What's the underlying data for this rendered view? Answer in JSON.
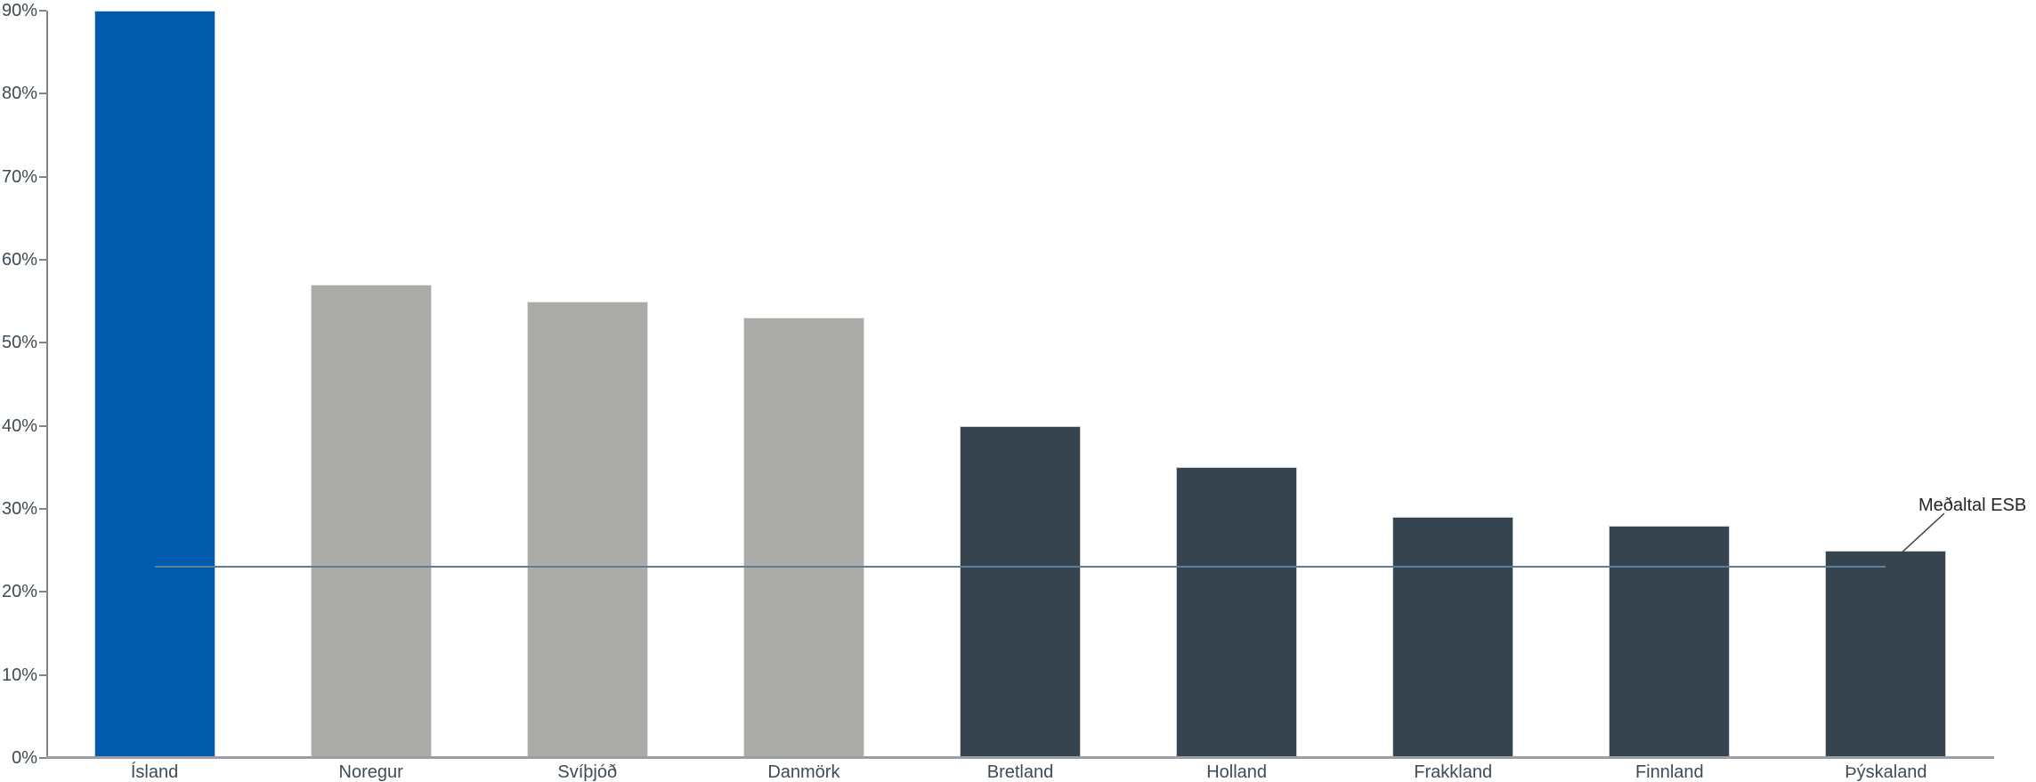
{
  "chart_data": {
    "type": "bar",
    "title": "",
    "xlabel": "",
    "ylabel": "",
    "categories": [
      "Ísland",
      "Noregur",
      "Svíþjóð",
      "Danmörk",
      "Bretland",
      "Holland",
      "Frakkland",
      "Finnland",
      "Þýskaland"
    ],
    "values": [
      90,
      57,
      55,
      53,
      40,
      35,
      29,
      28,
      25
    ],
    "bar_colors": [
      "#005bac",
      "#abaca8",
      "#abaca8",
      "#abaca8",
      "#35444e",
      "#35444e",
      "#35444e",
      "#35444e",
      "#35444e"
    ],
    "ylim": [
      0,
      90
    ],
    "ytick_step": 10,
    "ytick_labels": [
      "0%",
      "10%",
      "20%",
      "30%",
      "40%",
      "50%",
      "60%",
      "70%",
      "80%",
      "90%"
    ],
    "grid": false,
    "legend": "none",
    "reference_line": {
      "label": "Meðaltal ESB",
      "value": 23,
      "color": "#5f7d99"
    },
    "colors": {
      "highlight_blue": "#005bac",
      "neutral_gray": "#abaca8",
      "dark_slate": "#35444e",
      "axis_line": "#7f8488",
      "baseline": "#9b9fa3",
      "tick_text": "#3e4b55",
      "annotation_text": "#262626",
      "leader_line": "#404040"
    }
  }
}
